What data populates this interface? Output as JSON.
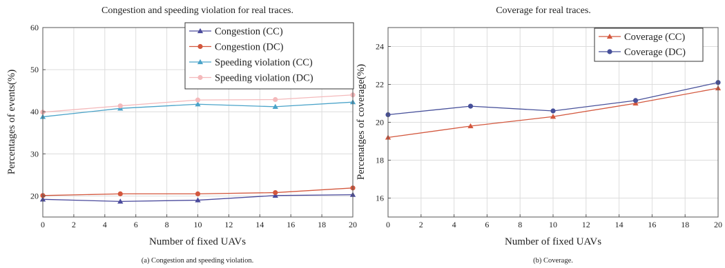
{
  "chart_data": [
    {
      "type": "line",
      "title": "Congestion and speeding violation for real traces.",
      "caption": "(a) Congestion and speeding violation.",
      "xlabel": "Number of fixed UAVs",
      "ylabel": "Percentages of events(%)",
      "xlim": [
        0,
        20
      ],
      "ylim": [
        15,
        60
      ],
      "xticks": [
        "0",
        "2",
        "4",
        "6",
        "8",
        "10",
        "12",
        "14",
        "16",
        "18",
        "20"
      ],
      "yticks": [
        "20",
        "30",
        "40",
        "50",
        "60"
      ],
      "grid": true,
      "legend": "top-right",
      "x": [
        0,
        5,
        10,
        15,
        20
      ],
      "series": [
        {
          "name": "Congestion (CC)",
          "marker": "triangle",
          "color": "#4a4a9c",
          "values": [
            19.2,
            18.7,
            19.0,
            20.1,
            20.3
          ]
        },
        {
          "name": "Congestion (DC)",
          "marker": "circle",
          "color": "#d3573d",
          "values": [
            20.1,
            20.5,
            20.5,
            20.8,
            21.9
          ]
        },
        {
          "name": "Speeding violation (CC)",
          "marker": "triangle",
          "color": "#4aa3c9",
          "values": [
            38.8,
            40.8,
            41.8,
            41.2,
            42.3
          ]
        },
        {
          "name": "Speeding violation (DC)",
          "marker": "circle",
          "color": "#f4b9bb",
          "values": [
            39.9,
            41.4,
            42.8,
            42.9,
            44.0
          ]
        }
      ]
    },
    {
      "type": "line",
      "title": "Coverage for real traces.",
      "caption": "(b) Coverage.",
      "xlabel": "Number of fixed UAVs",
      "ylabel": "Percenatges of coverage(%)",
      "xlim": [
        0,
        20
      ],
      "ylim": [
        15,
        25
      ],
      "xticks": [
        "0",
        "2",
        "4",
        "6",
        "8",
        "10",
        "12",
        "14",
        "16",
        "18",
        "20"
      ],
      "yticks": [
        "16",
        "18",
        "20",
        "22",
        "24"
      ],
      "grid": true,
      "legend": "top-right",
      "x": [
        0,
        5,
        10,
        15,
        20
      ],
      "series": [
        {
          "name": "Coverage (CC)",
          "marker": "triangle",
          "color": "#d3573d",
          "values": [
            19.2,
            19.8,
            20.3,
            21.0,
            21.8
          ]
        },
        {
          "name": "Coverage (DC)",
          "marker": "circle",
          "color": "#47509a",
          "values": [
            20.4,
            20.85,
            20.6,
            21.15,
            22.1
          ]
        }
      ]
    }
  ]
}
